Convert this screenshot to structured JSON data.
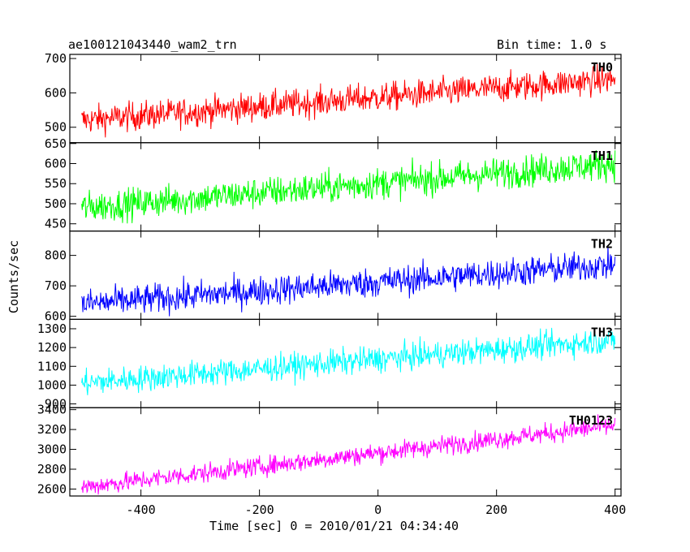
{
  "chart_data": {
    "type": "line",
    "title_left": "ae100121043440_wam2_trn",
    "title_right": "Bin time: 1.0 s",
    "xlabel": "Time [sec] 0 = 2010/01/21 04:34:40",
    "ylabel": "Counts/sec",
    "xlim": [
      -520,
      410
    ],
    "x_ticks": [
      -400,
      -200,
      0,
      200,
      400
    ],
    "x_start": -500,
    "x_end": 400,
    "x_step": 1,
    "panels": [
      {
        "name": "TH0",
        "color": "#ff0000",
        "ylim": [
          455,
          712
        ],
        "y_ticks": [
          500,
          600,
          700
        ],
        "trend_start": 520,
        "trend_end": 640,
        "noise": 30
      },
      {
        "name": "TH1",
        "color": "#00ff00",
        "ylim": [
          432,
          652
        ],
        "y_ticks": [
          450,
          500,
          550,
          600,
          650
        ],
        "trend_start": 490,
        "trend_end": 600,
        "noise": 28
      },
      {
        "name": "TH2",
        "color": "#0000ff",
        "ylim": [
          590,
          880
        ],
        "y_ticks": [
          600,
          700,
          800
        ],
        "trend_start": 640,
        "trend_end": 770,
        "noise": 35
      },
      {
        "name": "TH3",
        "color": "#00ffff",
        "ylim": [
          880,
          1350
        ],
        "y_ticks": [
          900,
          1000,
          1100,
          1200,
          1300
        ],
        "trend_start": 1010,
        "trend_end": 1240,
        "noise": 50
      },
      {
        "name": "TH0123",
        "color": "#ff00ff",
        "ylim": [
          2530,
          3420
        ],
        "y_ticks": [
          2600,
          2800,
          3000,
          3200,
          3400
        ],
        "trend_start": 2620,
        "trend_end": 3240,
        "noise": 70
      }
    ]
  }
}
